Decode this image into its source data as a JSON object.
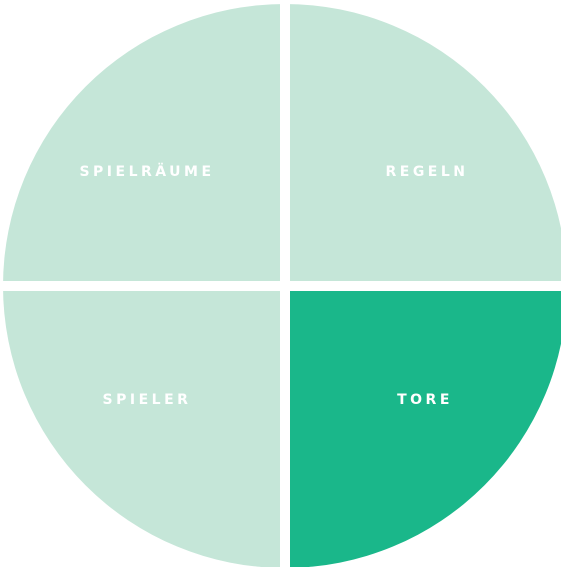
{
  "menu": {
    "items": [
      {
        "label": "SPIELRÄUME",
        "selected": false
      },
      {
        "label": "REGELN",
        "selected": false
      },
      {
        "label": "SPIELER",
        "selected": false
      },
      {
        "label": "TORE",
        "selected": true
      }
    ]
  }
}
